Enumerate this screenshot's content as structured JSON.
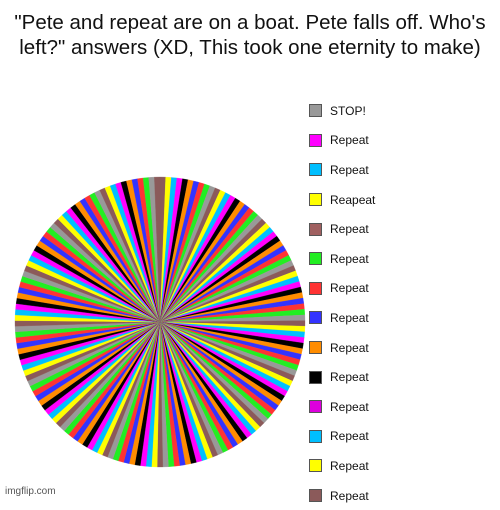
{
  "chart_data": {
    "type": "pie",
    "title": "\"Pete and repeat are on a boat. Pete falls off. Who's left?\" answers (XD, This took one eternity to make)",
    "legend_placement": "right",
    "slice_count": 161,
    "palette": [
      "#8b5a5a",
      "#ffff00",
      "#00bfff",
      "#ff00ff",
      "#000000",
      "#ff8c00",
      "#3333ff",
      "#ff3333",
      "#22ee22",
      "#999999"
    ],
    "legend": [
      {
        "label": "STOP!",
        "color": "#999999"
      },
      {
        "label": "Repeat",
        "color": "#ff00ff"
      },
      {
        "label": "Repeat",
        "color": "#00bfff"
      },
      {
        "label": "Reapeat",
        "color": "#ffff00"
      },
      {
        "label": "Repeat",
        "color": "#a06060"
      },
      {
        "label": "Repeat",
        "color": "#22ee22"
      },
      {
        "label": "Repeat",
        "color": "#ff3333"
      },
      {
        "label": "Repeat",
        "color": "#3333ff"
      },
      {
        "label": "Repeat",
        "color": "#ff8c00"
      },
      {
        "label": "Repeat",
        "color": "#000000"
      },
      {
        "label": "Repeat",
        "color": "#dd00dd"
      },
      {
        "label": "Repeat",
        "color": "#00bfff"
      },
      {
        "label": "Repeat",
        "color": "#ffff00"
      },
      {
        "label": "Repeat",
        "color": "#8b5a5a"
      }
    ]
  },
  "watermark": "imgflip.com"
}
